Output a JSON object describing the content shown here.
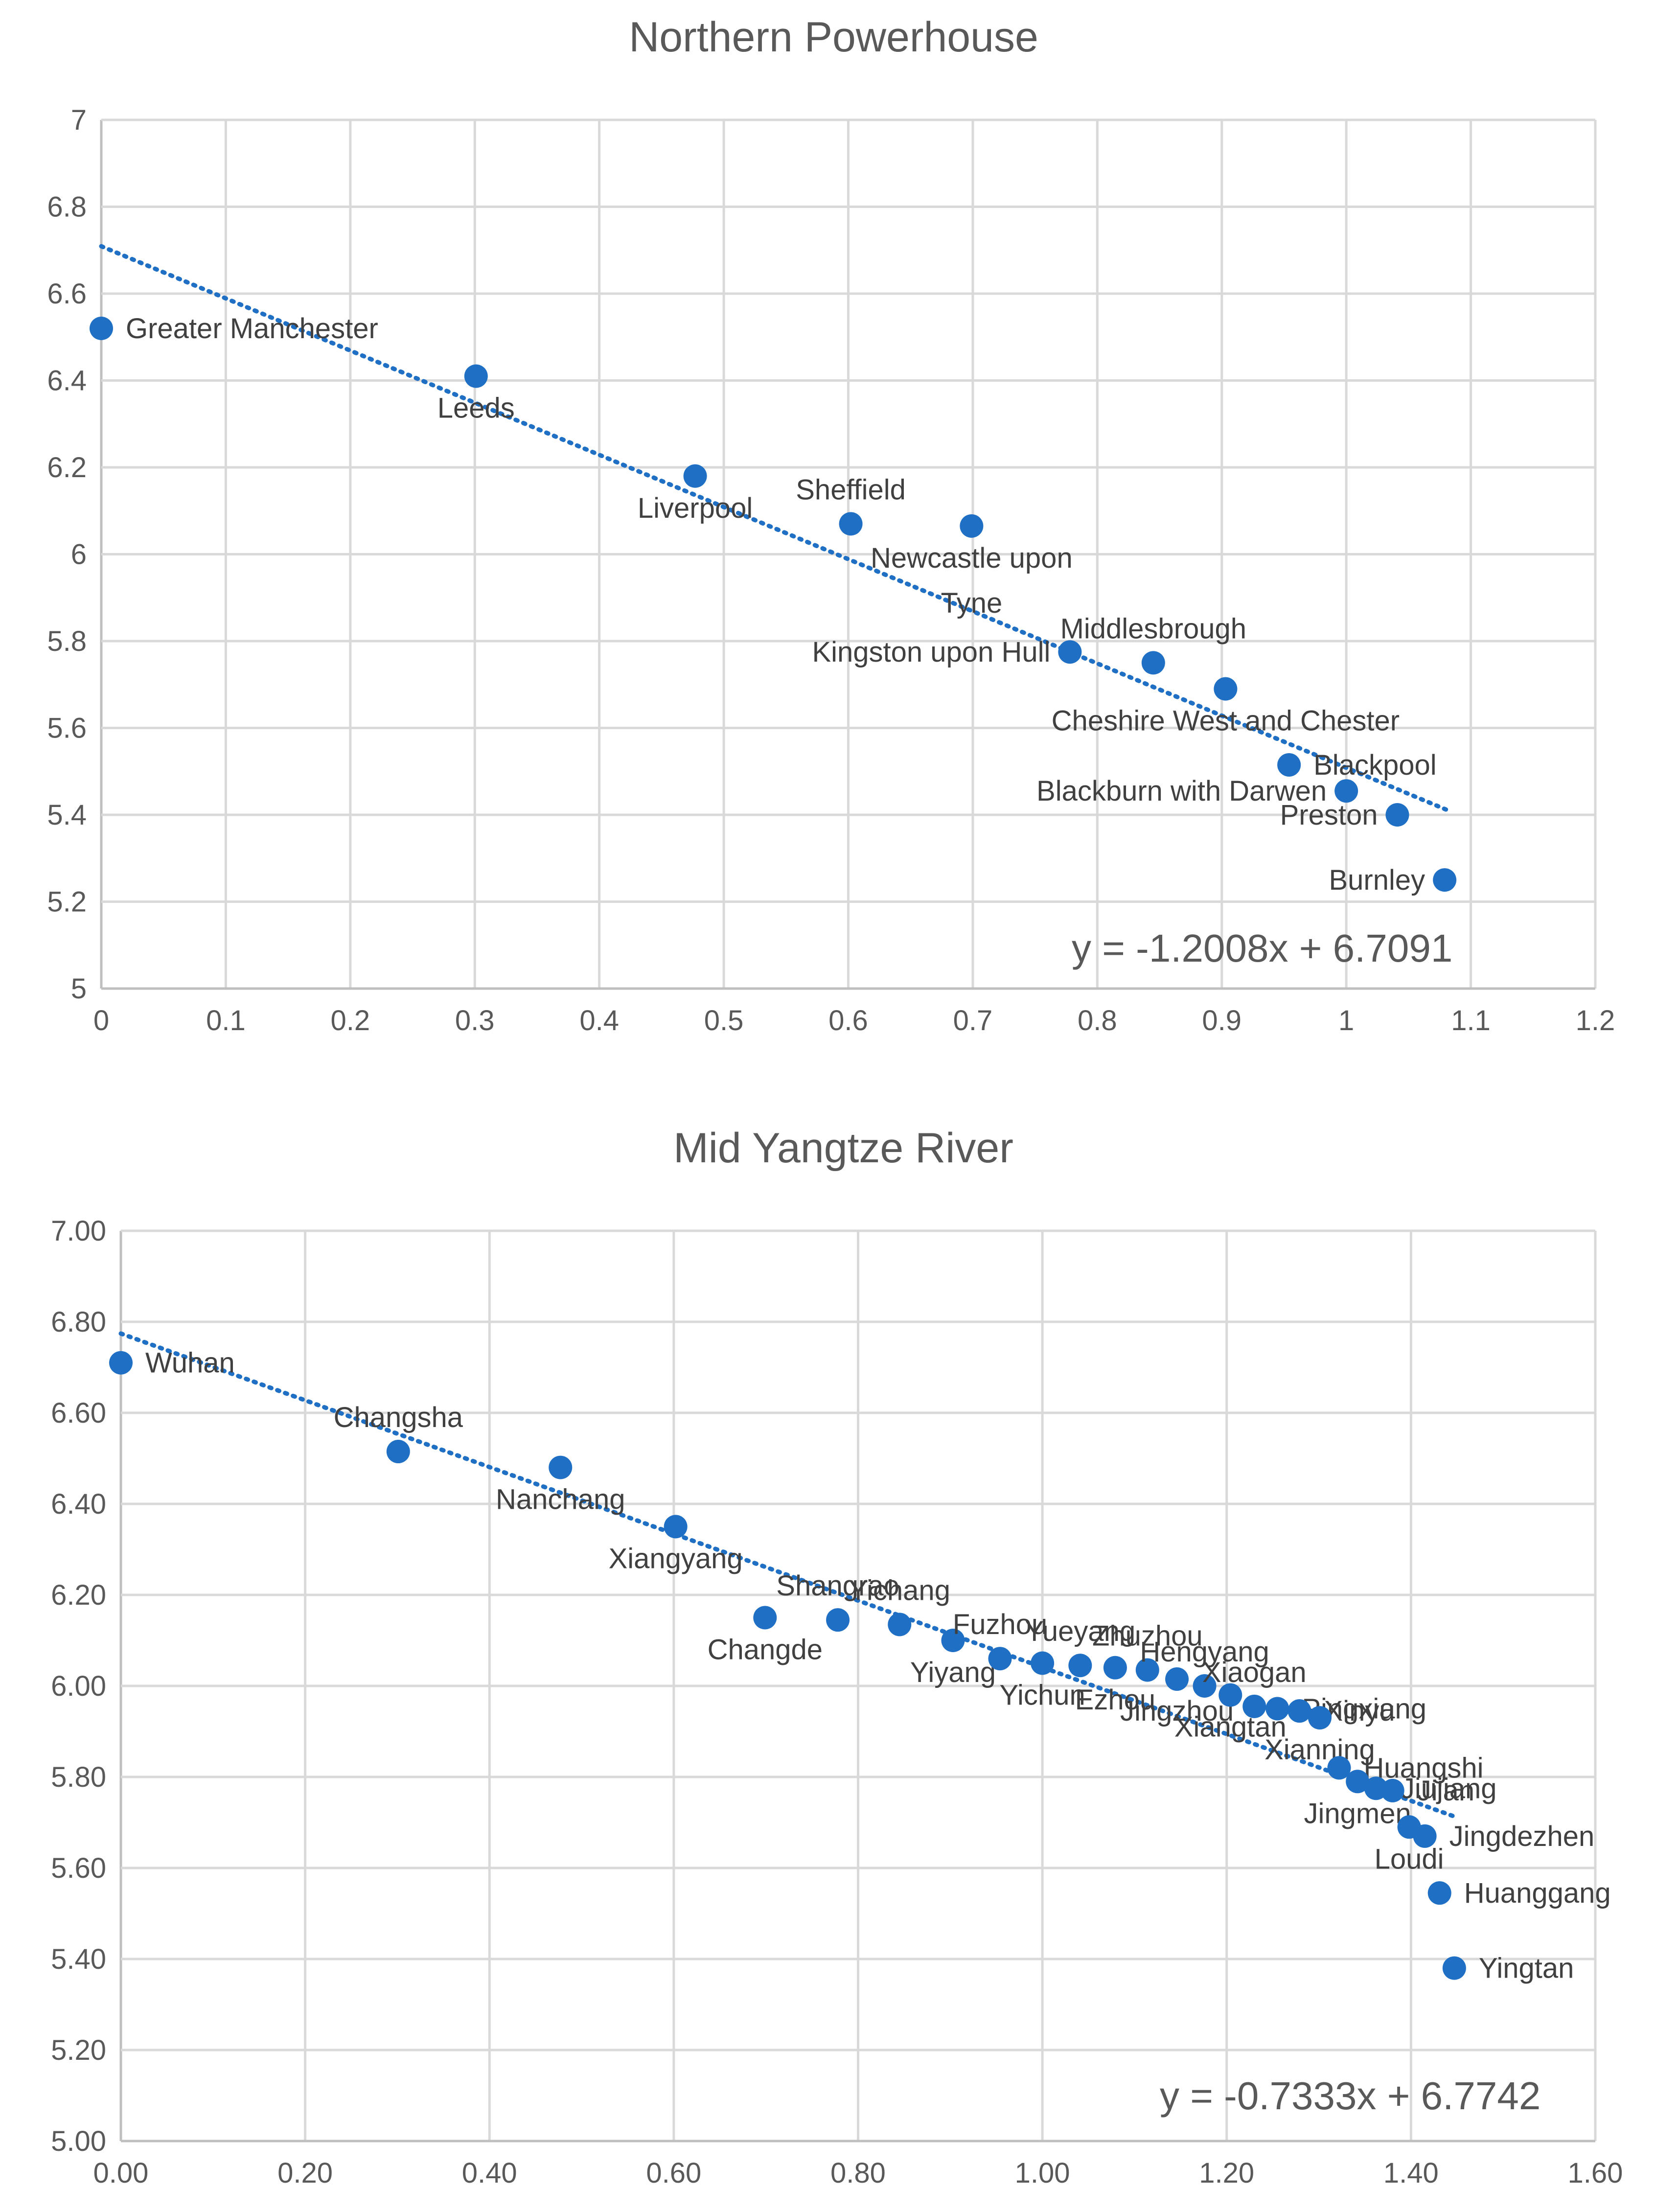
{
  "chart_data": [
    {
      "type": "scatter",
      "title": "Northern Powerhouse",
      "xlabel": "",
      "ylabel": "",
      "xlim": [
        0,
        1.2
      ],
      "ylim": [
        5,
        7
      ],
      "x_ticks": [
        0,
        0.1,
        0.2,
        0.3,
        0.4,
        0.5,
        0.6,
        0.7,
        0.8,
        0.9,
        1,
        1.1,
        1.2
      ],
      "x_tick_labels": [
        "0",
        "0.1",
        "0.2",
        "0.3",
        "0.4",
        "0.5",
        "0.6",
        "0.7",
        "0.8",
        "0.9",
        "1",
        "1.1",
        "1.2"
      ],
      "y_ticks": [
        5,
        5.2,
        5.4,
        5.6,
        5.8,
        6,
        6.2,
        6.4,
        6.6,
        6.8,
        7
      ],
      "y_tick_labels": [
        "5",
        "5.2",
        "5.4",
        "5.6",
        "5.8",
        "6",
        "6.2",
        "6.4",
        "6.6",
        "6.8",
        "7"
      ],
      "grid": true,
      "trendline": {
        "slope": -1.2008,
        "intercept": 6.7091,
        "x_range": [
          0,
          1.08
        ],
        "equation": "y = -1.2008x + 6.7091"
      },
      "points": [
        {
          "label": "Greater Manchester",
          "x": 0.0,
          "y": 6.52,
          "pos": "right"
        },
        {
          "label": "Leeds",
          "x": 0.301,
          "y": 6.41,
          "pos": "below"
        },
        {
          "label": "Liverpool",
          "x": 0.477,
          "y": 6.18,
          "pos": "below"
        },
        {
          "label": "Sheffield",
          "x": 0.602,
          "y": 6.07,
          "pos": "above"
        },
        {
          "label": "Newcastle upon\nTyne",
          "x": 0.699,
          "y": 6.065,
          "pos": "below"
        },
        {
          "label": "Kingston upon Hull",
          "x": 0.778,
          "y": 5.775,
          "pos": "left"
        },
        {
          "label": "Middlesbrough",
          "x": 0.845,
          "y": 5.75,
          "pos": "above"
        },
        {
          "label": "Cheshire West and Chester",
          "x": 0.903,
          "y": 5.69,
          "pos": "below"
        },
        {
          "label": "Blackpool",
          "x": 0.954,
          "y": 5.515,
          "pos": "right"
        },
        {
          "label": "Blackburn with Darwen",
          "x": 1.0,
          "y": 5.455,
          "pos": "left"
        },
        {
          "label": "Preston",
          "x": 1.041,
          "y": 5.4,
          "pos": "left"
        },
        {
          "label": "Burnley",
          "x": 1.079,
          "y": 5.25,
          "pos": "left"
        }
      ]
    },
    {
      "type": "scatter",
      "title": "Mid Yangtze River",
      "xlabel": "",
      "ylabel": "",
      "xlim": [
        0,
        1.6
      ],
      "ylim": [
        5,
        7
      ],
      "x_ticks": [
        0,
        0.2,
        0.4,
        0.6,
        0.8,
        1.0,
        1.2,
        1.4,
        1.6
      ],
      "x_tick_labels": [
        "0.00",
        "0.20",
        "0.40",
        "0.60",
        "0.80",
        "1.00",
        "1.20",
        "1.40",
        "1.60"
      ],
      "y_ticks": [
        5,
        5.2,
        5.4,
        5.6,
        5.8,
        6,
        6.2,
        6.4,
        6.6,
        6.8,
        7
      ],
      "y_tick_labels": [
        "5.00",
        "5.20",
        "5.40",
        "5.60",
        "5.80",
        "6.00",
        "6.20",
        "6.40",
        "6.60",
        "6.80",
        "7.00"
      ],
      "grid": true,
      "trendline": {
        "slope": -0.7333,
        "intercept": 6.7742,
        "x_range": [
          0,
          1.45
        ],
        "equation": "y = -0.7333x + 6.7742"
      },
      "points": [
        {
          "label": "Wuhan",
          "x": 0.0,
          "y": 6.71,
          "pos": "right"
        },
        {
          "label": "Changsha",
          "x": 0.301,
          "y": 6.515,
          "pos": "above"
        },
        {
          "label": "Nanchang",
          "x": 0.477,
          "y": 6.48,
          "pos": "below"
        },
        {
          "label": "Xiangyang",
          "x": 0.602,
          "y": 6.35,
          "pos": "below"
        },
        {
          "label": "Changde",
          "x": 0.699,
          "y": 6.15,
          "pos": "below"
        },
        {
          "label": "Shangrao",
          "x": 0.778,
          "y": 6.145,
          "pos": "above"
        },
        {
          "label": "Yichang",
          "x": 0.845,
          "y": 6.135,
          "pos": "above"
        },
        {
          "label": "Yiyang",
          "x": 0.903,
          "y": 6.1,
          "pos": "below"
        },
        {
          "label": "Fuzhou",
          "x": 0.954,
          "y": 6.06,
          "pos": "above"
        },
        {
          "label": "Yichun",
          "x": 1.0,
          "y": 6.05,
          "pos": "below"
        },
        {
          "label": "Yueyang",
          "x": 1.041,
          "y": 6.045,
          "pos": "above"
        },
        {
          "label": "Ezhou",
          "x": 1.079,
          "y": 6.04,
          "pos": "below"
        },
        {
          "label": "Zhuzhou",
          "x": 1.114,
          "y": 6.035,
          "pos": "above"
        },
        {
          "label": "Jingzhou",
          "x": 1.146,
          "y": 6.015,
          "pos": "below"
        },
        {
          "label": "Hengyang",
          "x": 1.176,
          "y": 6.0,
          "pos": "above"
        },
        {
          "label": "Xiangtan",
          "x": 1.204,
          "y": 5.98,
          "pos": "below"
        },
        {
          "label": "Xiaogan",
          "x": 1.23,
          "y": 5.955,
          "pos": "above"
        },
        {
          "label": "Pingxiang",
          "x": 1.255,
          "y": 5.95,
          "pos": "right"
        },
        {
          "label": "Xinyu",
          "x": 1.279,
          "y": 5.945,
          "pos": "right"
        },
        {
          "label": "Xianning",
          "x": 1.301,
          "y": 5.93,
          "pos": "below"
        },
        {
          "label": "Huangshi",
          "x": 1.322,
          "y": 5.82,
          "pos": "right"
        },
        {
          "label": "Jingmen",
          "x": 1.342,
          "y": 5.79,
          "pos": "below"
        },
        {
          "label": "Jiujiang",
          "x": 1.362,
          "y": 5.775,
          "pos": "right"
        },
        {
          "label": "Ji'an",
          "x": 1.38,
          "y": 5.77,
          "pos": "right"
        },
        {
          "label": "Loudi",
          "x": 1.398,
          "y": 5.69,
          "pos": "below"
        },
        {
          "label": "Jingdezhen",
          "x": 1.415,
          "y": 5.67,
          "pos": "right"
        },
        {
          "label": "Huanggang",
          "x": 1.431,
          "y": 5.545,
          "pos": "right"
        },
        {
          "label": "Yingtan",
          "x": 1.447,
          "y": 5.38,
          "pos": "right"
        }
      ]
    }
  ],
  "colors": {
    "marker": "#1f6fc4",
    "trend": "#1f6fc4",
    "grid": "#d9d9d9"
  }
}
